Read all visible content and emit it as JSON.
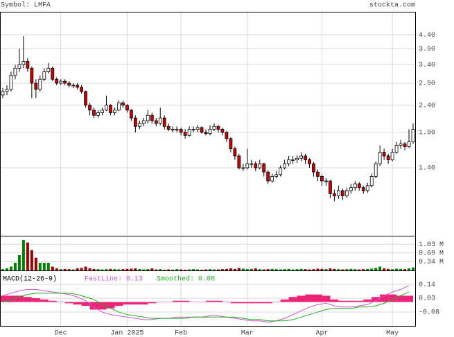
{
  "header": {
    "symbol": "Symbol: LMFA",
    "source": "stockta.com"
  },
  "chart_data": [
    {
      "type": "candlestick",
      "log_scale": true,
      "grid": true,
      "up_color": "#ffffff",
      "down_color": "#cc0000",
      "volume_up_color": "#008000",
      "volume_down_color": "#990000",
      "xlim": [
        -0.5,
        99.5
      ],
      "xticks": [
        {
          "value": 14,
          "label": "Dec"
        },
        {
          "value": 30,
          "label": "Jan 2025"
        },
        {
          "value": 43,
          "label": "Feb"
        },
        {
          "value": 59,
          "label": "Mar"
        },
        {
          "value": 77,
          "label": "Apr"
        },
        {
          "value": 94,
          "label": "May"
        }
      ],
      "ylim": [
        0.78,
        5.33
      ],
      "yticks": [
        {
          "value": 1.4,
          "label": "1.40"
        },
        {
          "value": 1.9,
          "label": "1.90"
        },
        {
          "value": 2.4,
          "label": "2.40"
        },
        {
          "value": 2.9,
          "label": "2.90"
        },
        {
          "value": 3.4,
          "label": "3.40"
        },
        {
          "value": 3.9,
          "label": "3.90"
        },
        {
          "value": 4.4,
          "label": "4.40"
        }
      ],
      "x": [
        0,
        1,
        2,
        3,
        4,
        5,
        6,
        7,
        8,
        9,
        10,
        11,
        12,
        13,
        14,
        15,
        16,
        17,
        18,
        19,
        20,
        21,
        22,
        23,
        24,
        25,
        26,
        27,
        28,
        29,
        30,
        31,
        32,
        33,
        34,
        35,
        36,
        37,
        38,
        39,
        40,
        41,
        42,
        43,
        44,
        45,
        46,
        47,
        48,
        49,
        50,
        51,
        52,
        53,
        54,
        55,
        56,
        57,
        58,
        59,
        60,
        61,
        62,
        63,
        64,
        65,
        66,
        67,
        68,
        69,
        70,
        71,
        72,
        73,
        74,
        75,
        76,
        77,
        78,
        79,
        80,
        81,
        82,
        83,
        84,
        85,
        86,
        87,
        88,
        89,
        90,
        91,
        92,
        93,
        94,
        95,
        96,
        97,
        98,
        99
      ],
      "open": [
        2.62,
        2.7,
        2.75,
        3.1,
        3.3,
        3.4,
        3.5,
        3.3,
        2.9,
        2.75,
        3.0,
        3.2,
        3.3,
        3.0,
        2.9,
        2.95,
        2.9,
        2.85,
        2.85,
        2.8,
        2.7,
        2.4,
        2.3,
        2.2,
        2.25,
        2.3,
        2.4,
        2.25,
        2.3,
        2.45,
        2.4,
        2.3,
        2.15,
        2.0,
        2.05,
        2.1,
        2.2,
        2.1,
        2.05,
        2.15,
        2.0,
        1.95,
        1.95,
        1.95,
        1.9,
        1.85,
        1.95,
        1.95,
        1.98,
        1.9,
        1.88,
        1.95,
        2.0,
        1.95,
        1.9,
        1.8,
        1.65,
        1.55,
        1.4,
        1.4,
        1.45,
        1.45,
        1.4,
        1.45,
        1.35,
        1.25,
        1.3,
        1.32,
        1.4,
        1.45,
        1.5,
        1.5,
        1.52,
        1.55,
        1.5,
        1.45,
        1.35,
        1.3,
        1.25,
        1.25,
        1.12,
        1.1,
        1.15,
        1.1,
        1.15,
        1.18,
        1.22,
        1.18,
        1.15,
        1.2,
        1.3,
        1.45,
        1.6,
        1.55,
        1.5,
        1.6,
        1.7,
        1.72,
        1.68,
        1.75
      ],
      "high": [
        2.78,
        2.85,
        3.2,
        3.4,
        3.9,
        4.35,
        3.6,
        3.35,
        3.0,
        3.1,
        3.3,
        3.45,
        3.35,
        3.05,
        3.0,
        3.0,
        2.95,
        2.9,
        2.9,
        2.85,
        2.72,
        2.45,
        2.35,
        2.3,
        2.35,
        2.6,
        2.42,
        2.35,
        2.5,
        2.5,
        2.42,
        2.32,
        2.2,
        2.1,
        2.15,
        2.3,
        2.25,
        2.15,
        2.35,
        2.2,
        2.05,
        2.0,
        2.0,
        1.98,
        1.95,
        2.0,
        2.0,
        2.02,
        2.0,
        1.95,
        2.02,
        2.05,
        2.02,
        1.98,
        1.92,
        1.82,
        1.68,
        1.58,
        1.45,
        1.65,
        1.5,
        1.48,
        1.5,
        1.46,
        1.37,
        1.33,
        1.36,
        1.43,
        1.5,
        1.55,
        1.55,
        1.56,
        1.6,
        1.58,
        1.52,
        1.47,
        1.38,
        1.32,
        1.28,
        1.26,
        1.16,
        1.2,
        1.17,
        1.18,
        1.22,
        1.25,
        1.24,
        1.2,
        1.23,
        1.33,
        1.48,
        1.7,
        1.65,
        1.58,
        1.65,
        1.75,
        1.78,
        1.75,
        1.95,
        2.05
      ],
      "low": [
        2.55,
        2.62,
        2.7,
        3.0,
        3.2,
        3.3,
        3.2,
        2.55,
        2.55,
        2.7,
        2.95,
        3.15,
        2.95,
        2.85,
        2.85,
        2.85,
        2.8,
        2.78,
        2.75,
        2.65,
        2.35,
        2.2,
        2.15,
        2.15,
        2.2,
        2.28,
        2.2,
        2.2,
        2.28,
        2.35,
        2.25,
        2.1,
        1.9,
        1.95,
        2.0,
        2.05,
        2.05,
        2.0,
        2.02,
        1.95,
        1.92,
        1.9,
        1.9,
        1.85,
        1.8,
        1.83,
        1.9,
        1.9,
        1.88,
        1.85,
        1.85,
        1.92,
        1.9,
        1.85,
        1.75,
        1.6,
        1.5,
        1.38,
        1.36,
        1.38,
        1.4,
        1.36,
        1.38,
        1.3,
        1.22,
        1.23,
        1.28,
        1.3,
        1.38,
        1.42,
        1.45,
        1.46,
        1.48,
        1.45,
        1.4,
        1.3,
        1.25,
        1.2,
        1.2,
        1.08,
        1.05,
        1.07,
        1.06,
        1.08,
        1.12,
        1.15,
        1.15,
        1.12,
        1.13,
        1.18,
        1.28,
        1.42,
        1.5,
        1.45,
        1.48,
        1.58,
        1.65,
        1.63,
        1.66,
        1.72
      ],
      "close": [
        2.7,
        2.75,
        3.1,
        3.3,
        3.4,
        3.5,
        3.3,
        2.9,
        2.75,
        3.0,
        3.2,
        3.3,
        3.0,
        2.9,
        2.95,
        2.9,
        2.85,
        2.85,
        2.8,
        2.7,
        2.4,
        2.3,
        2.2,
        2.25,
        2.3,
        2.4,
        2.25,
        2.3,
        2.45,
        2.4,
        2.3,
        2.15,
        2.0,
        2.05,
        2.1,
        2.2,
        2.1,
        2.05,
        2.15,
        2.0,
        1.95,
        1.95,
        1.95,
        1.9,
        1.85,
        1.95,
        1.95,
        1.98,
        1.9,
        1.88,
        1.95,
        2.0,
        1.95,
        1.9,
        1.8,
        1.65,
        1.55,
        1.4,
        1.4,
        1.45,
        1.45,
        1.4,
        1.45,
        1.35,
        1.25,
        1.3,
        1.32,
        1.4,
        1.45,
        1.5,
        1.5,
        1.52,
        1.55,
        1.5,
        1.45,
        1.35,
        1.3,
        1.25,
        1.25,
        1.12,
        1.1,
        1.15,
        1.1,
        1.15,
        1.18,
        1.22,
        1.18,
        1.15,
        1.2,
        1.3,
        1.45,
        1.6,
        1.55,
        1.5,
        1.6,
        1.7,
        1.72,
        1.68,
        1.75,
        1.95
      ],
      "volume": [
        0.05,
        0.08,
        0.15,
        0.3,
        0.6,
        1.2,
        1.1,
        0.8,
        0.5,
        0.3,
        0.3,
        0.3,
        0.15,
        0.08,
        0.05,
        0.06,
        0.05,
        0.04,
        0.08,
        0.1,
        0.15,
        0.08,
        0.06,
        0.05,
        0.04,
        0.05,
        0.06,
        0.05,
        0.04,
        0.05,
        0.06,
        0.07,
        0.08,
        0.05,
        0.04,
        0.05,
        0.08,
        0.04,
        0.05,
        0.03,
        0.04,
        0.03,
        0.05,
        0.04,
        0.03,
        0.04,
        0.05,
        0.04,
        0.03,
        0.04,
        0.05,
        0.04,
        0.04,
        0.05,
        0.06,
        0.08,
        0.06,
        0.1,
        0.07,
        0.05,
        0.06,
        0.08,
        0.05,
        0.04,
        0.05,
        0.06,
        0.05,
        0.04,
        0.05,
        0.06,
        0.04,
        0.05,
        0.06,
        0.05,
        0.04,
        0.05,
        0.07,
        0.06,
        0.05,
        0.08,
        0.06,
        0.05,
        0.04,
        0.05,
        0.06,
        0.05,
        0.04,
        0.05,
        0.06,
        0.07,
        0.1,
        0.15,
        0.08,
        0.06,
        0.05,
        0.07,
        0.06,
        0.05,
        0.08,
        0.12
      ],
      "volume_ylim": [
        0,
        1.31
      ],
      "volume_yticks": [
        {
          "value": 0.34,
          "label": "0.34 M"
        },
        {
          "value": 0.69,
          "label": "0.69 M"
        },
        {
          "value": 1.03,
          "label": "1.03 M"
        }
      ]
    },
    {
      "type": "macd",
      "title": "MACD(12-26-9)",
      "grid": true,
      "xlim": [
        -0.5,
        99.5
      ],
      "ylim": [
        -0.19,
        0.24
      ],
      "yticks": [
        -0.08,
        0.03,
        0.14
      ],
      "x": [
        0,
        2,
        4,
        6,
        8,
        10,
        12,
        14,
        16,
        18,
        20,
        22,
        24,
        26,
        28,
        30,
        32,
        34,
        36,
        38,
        40,
        42,
        44,
        46,
        48,
        50,
        52,
        54,
        56,
        58,
        60,
        62,
        64,
        66,
        68,
        70,
        72,
        74,
        76,
        78,
        80,
        82,
        84,
        86,
        88,
        90,
        92,
        94,
        96,
        98
      ],
      "series": [
        {
          "name": "FastLine: 0.13",
          "color": "#cc55cc",
          "values": [
            0.05,
            0.07,
            0.09,
            0.1,
            0.1,
            0.09,
            0.08,
            0.07,
            0.06,
            0.04,
            0.01,
            -0.04,
            -0.08,
            -0.1,
            -0.11,
            -0.12,
            -0.13,
            -0.14,
            -0.14,
            -0.13,
            -0.13,
            -0.12,
            -0.12,
            -0.12,
            -0.12,
            -0.11,
            -0.11,
            -0.12,
            -0.13,
            -0.14,
            -0.15,
            -0.15,
            -0.16,
            -0.15,
            -0.13,
            -0.1,
            -0.07,
            -0.04,
            -0.02,
            -0.01,
            -0.03,
            -0.04,
            -0.04,
            -0.03,
            -0.02,
            0.01,
            0.05,
            0.08,
            0.1,
            0.13
          ]
        },
        {
          "name": "Smoothed: 0.08",
          "color": "#22aa22",
          "values": [
            0.0,
            0.02,
            0.04,
            0.06,
            0.07,
            0.07,
            0.07,
            0.07,
            0.07,
            0.06,
            0.04,
            0.02,
            -0.02,
            -0.05,
            -0.08,
            -0.1,
            -0.11,
            -0.12,
            -0.13,
            -0.13,
            -0.13,
            -0.13,
            -0.13,
            -0.12,
            -0.12,
            -0.12,
            -0.12,
            -0.12,
            -0.12,
            -0.13,
            -0.14,
            -0.14,
            -0.15,
            -0.15,
            -0.15,
            -0.14,
            -0.12,
            -0.1,
            -0.08,
            -0.06,
            -0.05,
            -0.05,
            -0.05,
            -0.04,
            -0.04,
            -0.03,
            -0.01,
            0.02,
            0.05,
            0.08
          ]
        }
      ],
      "histogram_color": "#ee2277",
      "histogram": [
        0.05,
        0.05,
        0.05,
        0.04,
        0.03,
        0.02,
        0.01,
        0.0,
        -0.01,
        -0.02,
        -0.03,
        -0.06,
        -0.06,
        -0.05,
        -0.03,
        -0.02,
        -0.02,
        -0.02,
        -0.01,
        0.0,
        0.0,
        0.01,
        0.01,
        0.0,
        0.0,
        0.01,
        0.01,
        0.0,
        -0.01,
        -0.01,
        -0.01,
        -0.01,
        -0.01,
        0.0,
        0.02,
        0.04,
        0.05,
        0.06,
        0.06,
        0.05,
        0.02,
        0.01,
        0.01,
        0.01,
        0.02,
        0.04,
        0.06,
        0.06,
        0.05,
        0.05
      ]
    }
  ]
}
